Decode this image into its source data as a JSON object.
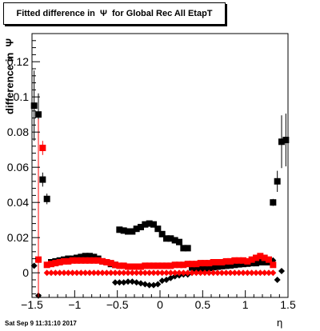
{
  "title": "Fitted difference in  Ψ  for Global Rec All EtapT",
  "timestamp": "Sat Sep  9 11:31:10 2017",
  "chart_data": {
    "type": "scatter",
    "title": "Fitted difference in  Ψ  for Global Rec All EtapT",
    "xlabel": "η",
    "ylabel": "difference in  Ψ",
    "xlim": [
      -1.5,
      1.5
    ],
    "ylim": [
      -0.014,
      0.136
    ],
    "xticks": [
      -1.5,
      -1.0,
      -0.5,
      0.0,
      0.5,
      1.0,
      1.5
    ],
    "xtick_labels": [
      "−1.5",
      "−1",
      "−0.5",
      "0",
      "0.5",
      "1",
      "1.5"
    ],
    "yticks": [
      0.0,
      0.02,
      0.04,
      0.06,
      0.08,
      0.1,
      0.12
    ],
    "ytick_labels": [
      "0",
      "0.02",
      "0.04",
      "0.06",
      "0.08",
      "0.1",
      "0.12"
    ],
    "grid": false,
    "series": [
      {
        "marker": "square",
        "color": "#000000",
        "x": [
          -1.475,
          -1.425,
          -1.375,
          -1.325,
          -1.275,
          -1.225,
          -1.175,
          -1.125,
          -1.075,
          -1.025,
          -0.975,
          -0.925,
          -0.875,
          -0.825,
          -0.775,
          -0.725,
          -0.675,
          -0.625,
          -0.575,
          -0.525,
          -0.475,
          -0.425,
          -0.375,
          -0.325,
          -0.275,
          -0.225,
          -0.175,
          -0.125,
          -0.075,
          -0.025,
          0.025,
          0.075,
          0.125,
          0.175,
          0.225,
          0.275,
          0.325,
          0.375,
          0.425,
          0.475,
          0.525,
          0.575,
          0.625,
          0.675,
          0.725,
          0.775,
          0.825,
          0.875,
          0.925,
          0.975,
          1.025,
          1.075,
          1.125,
          1.175,
          1.225,
          1.275,
          1.325,
          1.375,
          1.425,
          1.475
        ],
        "y": [
          0.095,
          0.09,
          0.053,
          0.042,
          0.006,
          0.0065,
          0.007,
          0.0075,
          0.008,
          0.008,
          0.0085,
          0.009,
          0.0095,
          0.0095,
          0.009,
          0.008,
          0.0065,
          0.006,
          0.005,
          0.0045,
          0.0245,
          0.024,
          0.0235,
          0.0235,
          0.025,
          0.026,
          0.0275,
          0.028,
          0.0275,
          0.025,
          0.022,
          0.0195,
          0.0195,
          0.0185,
          0.0175,
          0.014,
          0.014,
          0.003,
          0.0025,
          0.002,
          0.0025,
          0.0028,
          0.0032,
          0.0035,
          0.0038,
          0.004,
          0.0042,
          0.0045,
          0.0048,
          0.005,
          0.0052,
          0.0055,
          0.0055,
          0.006,
          0.006,
          0.006,
          0.04,
          0.052,
          0.0745,
          0.0755
        ],
        "err": [
          0.02,
          0.012,
          0.004,
          0.003,
          0.001,
          0.001,
          0.001,
          0.001,
          0.001,
          0.001,
          0.001,
          0.001,
          0.001,
          0.001,
          0.001,
          0.001,
          0.001,
          0.001,
          0.001,
          0.001,
          0.001,
          0.001,
          0.001,
          0.001,
          0.001,
          0.001,
          0.001,
          0.001,
          0.001,
          0.001,
          0.001,
          0.001,
          0.001,
          0.001,
          0.001,
          0.001,
          0.001,
          0.001,
          0.001,
          0.001,
          0.001,
          0.001,
          0.001,
          0.001,
          0.001,
          0.001,
          0.001,
          0.001,
          0.001,
          0.001,
          0.001,
          0.001,
          0.001,
          0.001,
          0.001,
          0.001,
          0.002,
          0.006,
          0.015,
          0.015
        ]
      },
      {
        "marker": "diamond",
        "color": "#000000",
        "x": [
          -1.475,
          -1.425,
          -0.525,
          -0.475,
          -0.425,
          -0.375,
          -0.325,
          -0.275,
          -0.225,
          -0.175,
          -0.125,
          -0.075,
          -0.025,
          0.025,
          0.075,
          0.125,
          0.175,
          0.225,
          0.275,
          0.325,
          0.375,
          1.325,
          1.375,
          1.425
        ],
        "y": [
          0.004,
          -0.013,
          -0.0055,
          -0.0055,
          -0.0055,
          -0.005,
          -0.005,
          -0.0055,
          -0.006,
          -0.0065,
          -0.007,
          -0.007,
          -0.0065,
          -0.0045,
          -0.004,
          -0.003,
          -0.002,
          -0.0015,
          -0.001,
          -0.001,
          0.0,
          0.007,
          -0.004,
          0.001
        ]
      },
      {
        "marker": "square",
        "color": "#ff0000",
        "x": [
          -1.425,
          -1.375,
          -1.325,
          -1.275,
          -1.225,
          -1.175,
          -1.125,
          -1.075,
          -1.025,
          -0.975,
          -0.925,
          -0.875,
          -0.825,
          -0.775,
          -0.725,
          -0.675,
          -0.625,
          -0.575,
          -0.525,
          -0.475,
          -0.425,
          -0.375,
          -0.325,
          -0.275,
          -0.225,
          -0.175,
          -0.125,
          -0.075,
          -0.025,
          0.025,
          0.075,
          0.125,
          0.175,
          0.225,
          0.275,
          0.325,
          0.375,
          0.425,
          0.475,
          0.525,
          0.575,
          0.625,
          0.675,
          0.725,
          0.775,
          0.825,
          0.875,
          0.925,
          0.975,
          1.025,
          1.075,
          1.125,
          1.175,
          1.225,
          1.275,
          1.325
        ],
        "y": [
          0.0075,
          0.071,
          0.0045,
          0.005,
          0.0055,
          0.006,
          0.0065,
          0.0065,
          0.007,
          0.007,
          0.007,
          0.007,
          0.007,
          0.007,
          0.007,
          0.0065,
          0.006,
          0.0055,
          0.0045,
          0.004,
          0.004,
          0.0035,
          0.0035,
          0.0035,
          0.0035,
          0.004,
          0.004,
          0.004,
          0.004,
          0.004,
          0.004,
          0.004,
          0.0045,
          0.0045,
          0.0045,
          0.005,
          0.005,
          0.005,
          0.0055,
          0.0055,
          0.0055,
          0.006,
          0.006,
          0.006,
          0.0065,
          0.0065,
          0.007,
          0.007,
          0.007,
          0.0065,
          0.0075,
          0.0085,
          0.0095,
          0.0085,
          0.0075,
          0.0045
        ],
        "err": [
          0.08,
          0.004,
          0.001,
          0.001,
          0.001,
          0.001,
          0.001,
          0.001,
          0.001,
          0.001,
          0.001,
          0.001,
          0.001,
          0.001,
          0.001,
          0.001,
          0.001,
          0.001,
          0.001,
          0.001,
          0.001,
          0.001,
          0.001,
          0.001,
          0.001,
          0.001,
          0.001,
          0.001,
          0.001,
          0.001,
          0.001,
          0.001,
          0.001,
          0.001,
          0.001,
          0.001,
          0.001,
          0.001,
          0.001,
          0.001,
          0.001,
          0.001,
          0.001,
          0.001,
          0.001,
          0.001,
          0.001,
          0.001,
          0.001,
          0.001,
          0.001,
          0.001,
          0.001,
          0.001,
          0.001,
          0.001
        ]
      },
      {
        "marker": "diamond",
        "color": "#ff0000",
        "x": [
          -1.325,
          -1.275,
          -1.225,
          -1.175,
          -1.125,
          -1.075,
          -1.025,
          -0.975,
          -0.925,
          -0.875,
          -0.825,
          -0.775,
          -0.725,
          -0.675,
          -0.625,
          -0.575,
          -0.525,
          -0.475,
          -0.425,
          -0.375,
          -0.325,
          -0.275,
          -0.225,
          -0.175,
          -0.125,
          -0.075,
          -0.025,
          0.025,
          0.075,
          0.125,
          0.175,
          0.225,
          0.275,
          0.325,
          0.375,
          0.425,
          0.475,
          0.525,
          0.575,
          0.625,
          0.675,
          0.725,
          0.775,
          0.825,
          0.875,
          0.925,
          0.975,
          1.025,
          1.075,
          1.125,
          1.175,
          1.225,
          1.275,
          1.325
        ],
        "y": [
          0.0,
          0.0,
          0.0,
          0.0,
          0.0,
          0.0,
          0.0,
          0.0,
          0.0,
          0.0,
          0.0,
          0.0,
          0.0,
          0.0,
          0.0,
          0.0,
          0.0,
          0.0,
          0.0,
          0.0,
          0.0,
          0.0,
          0.0,
          0.0,
          0.0,
          0.0,
          0.0,
          0.0,
          0.0,
          0.0,
          0.0,
          0.0,
          0.0,
          0.0,
          0.0,
          0.0,
          0.0,
          0.0,
          0.0,
          0.0,
          0.0,
          0.0,
          0.0,
          0.0,
          0.0,
          0.0,
          0.0,
          0.0,
          0.0,
          0.0,
          0.0,
          0.0,
          0.0,
          0.0
        ]
      }
    ]
  }
}
